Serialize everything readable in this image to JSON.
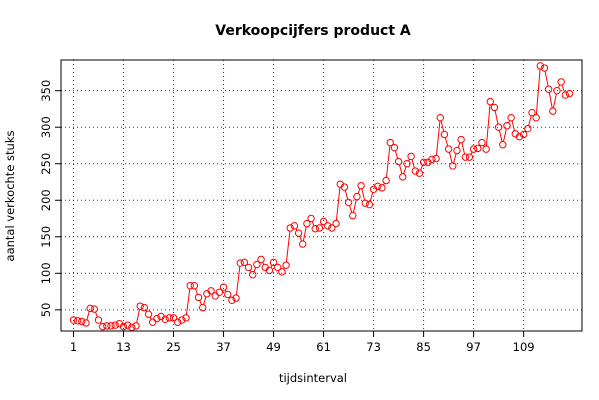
{
  "chart_data": {
    "type": "line",
    "title": "Verkoopcijfers product A",
    "xlabel": "tijdsinterval",
    "ylabel": "aantal verkochte stuks",
    "x_ticks": [
      1,
      13,
      25,
      37,
      49,
      61,
      73,
      85,
      97,
      109
    ],
    "y_ticks": [
      50,
      100,
      150,
      200,
      250,
      300,
      350
    ],
    "xlim": [
      -2,
      123
    ],
    "ylim": [
      21,
      392
    ],
    "grid": true,
    "line_color": "#ff0000",
    "marker": "open-circle",
    "series": [
      {
        "values": [
          36,
          35,
          34,
          32,
          52,
          51,
          36,
          27,
          28,
          28,
          29,
          31,
          27,
          29,
          26,
          28,
          55,
          53,
          44,
          33,
          38,
          41,
          37,
          39,
          39,
          33,
          36,
          39,
          83,
          83,
          67,
          53,
          72,
          76,
          69,
          74,
          81,
          71,
          63,
          66,
          114,
          115,
          108,
          98,
          112,
          119,
          108,
          104,
          115,
          108,
          102,
          111,
          162,
          165,
          155,
          140,
          168,
          175,
          161,
          162,
          171,
          165,
          162,
          168,
          222,
          218,
          197,
          179,
          205,
          220,
          196,
          194,
          215,
          219,
          217,
          227,
          279,
          272,
          253,
          232,
          250,
          260,
          240,
          237,
          252,
          252,
          256,
          257,
          313,
          290,
          270,
          247,
          268,
          283,
          259,
          259,
          270,
          271,
          279,
          270,
          335,
          327,
          300,
          276,
          302,
          313,
          291,
          287,
          290,
          298,
          320,
          313,
          384,
          381,
          352,
          322,
          350,
          362,
          344,
          346
        ]
      }
    ]
  }
}
